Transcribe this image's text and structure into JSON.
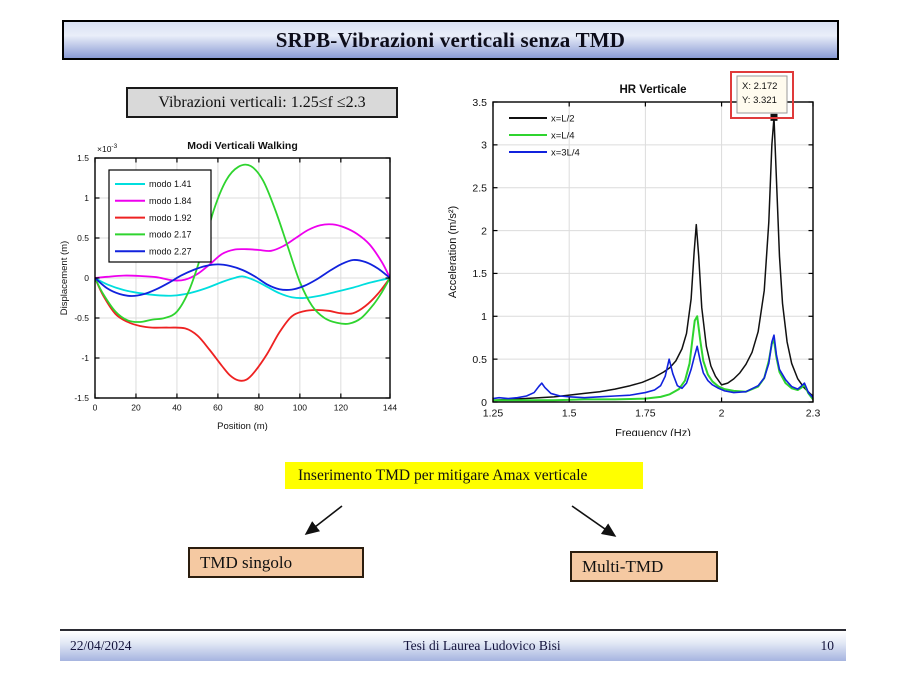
{
  "slide": {
    "title": "SRPB-Vibrazioni verticali senza TMD",
    "constraint_label": "Vibrazioni verticali: 1.25≤f ≤2.3",
    "action_label": "Inserimento TMD per mitigare Amax verticale",
    "options": {
      "left": "TMD singolo",
      "right": "Multi-TMD"
    },
    "footer": {
      "date": "22/04/2024",
      "center": "Tesi di Laurea Ludovico Bisi",
      "page": "10"
    }
  },
  "colors": {
    "header_fill_top": "#d9e0f3",
    "header_fill_bottom": "#8a9ad4",
    "yellow_highlight": "#ffff00",
    "option_box_fill": "#f5c9a2",
    "constraint_box_fill": "#d9d9d9",
    "grid": "#dcdcdc",
    "datatip_fill": "#fffbee",
    "datatip_highlight": "#e03a3a"
  },
  "chart_data": [
    {
      "id": "left",
      "type": "line",
      "title": "Modi Verticali Walking",
      "xlabel": "Position (m)",
      "ylabel": "Displacement (m)",
      "y_multiplier": {
        "base": "×10",
        "exp": "-3"
      },
      "xlim": [
        0,
        144
      ],
      "ylim": [
        -1.5,
        1.5
      ],
      "xticks": {
        "values": [
          0,
          20,
          40,
          60,
          80,
          100,
          120,
          144
        ],
        "labels": [
          "0",
          "20",
          "40",
          "60",
          "80",
          "100",
          "120",
          "144"
        ]
      },
      "yticks": {
        "values": [
          -1.5,
          -1,
          -0.5,
          0,
          0.5,
          1,
          1.5
        ],
        "labels": [
          "-1.5",
          "-1",
          "-0.5",
          "0",
          "0.5",
          "1",
          "1.5"
        ]
      },
      "grid": true,
      "legend": {
        "position": "top-left",
        "box": true
      },
      "series": [
        {
          "name": "modo 1.41",
          "color": "#00dede",
          "width": 1.8,
          "smooth": true,
          "x": [
            0,
            6,
            14,
            22,
            30,
            38,
            46,
            54,
            62,
            68,
            72,
            78,
            84,
            90,
            96,
            102,
            110,
            118,
            126,
            134,
            144
          ],
          "y": [
            0,
            -0.08,
            -0.15,
            -0.19,
            -0.215,
            -0.22,
            -0.19,
            -0.13,
            -0.05,
            0.0,
            0.02,
            -0.03,
            -0.11,
            -0.19,
            -0.24,
            -0.25,
            -0.22,
            -0.17,
            -0.12,
            -0.06,
            0
          ]
        },
        {
          "name": "modo 1.84",
          "color": "#ee00ee",
          "width": 1.8,
          "smooth": true,
          "x": [
            0,
            6,
            14,
            22,
            30,
            38,
            44,
            50,
            56,
            62,
            68,
            74,
            80,
            86,
            92,
            98,
            104,
            110,
            116,
            122,
            128,
            134,
            140,
            144
          ],
          "y": [
            0,
            0.015,
            0.03,
            0.025,
            0.01,
            -0.03,
            -0.02,
            0.05,
            0.17,
            0.3,
            0.355,
            0.36,
            0.35,
            0.34,
            0.4,
            0.5,
            0.6,
            0.66,
            0.67,
            0.63,
            0.55,
            0.42,
            0.2,
            0
          ]
        },
        {
          "name": "modo 1.92",
          "color": "#ee2222",
          "width": 1.8,
          "smooth": true,
          "x": [
            0,
            4,
            10,
            16,
            22,
            28,
            36,
            44,
            50,
            56,
            62,
            66,
            70,
            74,
            78,
            84,
            90,
            96,
            102,
            108,
            114,
            120,
            126,
            132,
            138,
            144
          ],
          "y": [
            0,
            -0.22,
            -0.45,
            -0.55,
            -0.6,
            -0.62,
            -0.62,
            -0.63,
            -0.72,
            -0.9,
            -1.1,
            -1.22,
            -1.28,
            -1.27,
            -1.17,
            -0.95,
            -0.68,
            -0.48,
            -0.415,
            -0.4,
            -0.41,
            -0.44,
            -0.44,
            -0.35,
            -0.2,
            0
          ]
        },
        {
          "name": "modo 2.17",
          "color": "#2fd42f",
          "width": 1.8,
          "smooth": true,
          "x": [
            0,
            4,
            10,
            16,
            22,
            28,
            34,
            40,
            46,
            52,
            58,
            64,
            70,
            76,
            82,
            88,
            94,
            100,
            106,
            112,
            118,
            124,
            130,
            136,
            140,
            144
          ],
          "y": [
            0,
            -0.2,
            -0.42,
            -0.53,
            -0.55,
            -0.52,
            -0.5,
            -0.42,
            -0.15,
            0.3,
            0.85,
            1.22,
            1.39,
            1.4,
            1.22,
            0.85,
            0.4,
            -0.05,
            -0.35,
            -0.5,
            -0.56,
            -0.57,
            -0.5,
            -0.33,
            -0.18,
            0
          ]
        },
        {
          "name": "modo 2.27",
          "color": "#1122dd",
          "width": 1.8,
          "smooth": true,
          "x": [
            0,
            6,
            12,
            18,
            24,
            30,
            36,
            42,
            48,
            54,
            60,
            66,
            72,
            78,
            84,
            90,
            96,
            102,
            108,
            114,
            120,
            126,
            132,
            138,
            144
          ],
          "y": [
            0,
            -0.13,
            -0.2,
            -0.225,
            -0.2,
            -0.14,
            -0.06,
            0.03,
            0.1,
            0.15,
            0.17,
            0.15,
            0.1,
            0.02,
            -0.08,
            -0.14,
            -0.145,
            -0.1,
            -0.02,
            0.08,
            0.17,
            0.225,
            0.2,
            0.12,
            0
          ]
        }
      ]
    },
    {
      "id": "right",
      "type": "line",
      "title": "HR Verticale",
      "xlabel": "Frequency (Hz)",
      "ylabel": "Acceleration (m/s²)",
      "xlim": [
        1.25,
        2.3
      ],
      "ylim": [
        0,
        3.5
      ],
      "xticks": {
        "values": [
          1.25,
          1.5,
          1.75,
          2,
          2.3
        ],
        "labels": [
          "1.25",
          "1.5",
          "1.75",
          "2",
          "2.3"
        ]
      },
      "yticks": {
        "values": [
          0,
          0.5,
          1,
          1.5,
          2,
          2.5,
          3,
          3.5
        ],
        "labels": [
          "0",
          "0.5",
          "1",
          "1.5",
          "2",
          "2.5",
          "3",
          "3.5"
        ]
      },
      "grid": true,
      "legend": {
        "position": "top-left",
        "box": false
      },
      "datatip": {
        "x": 2.172,
        "y": 3.321,
        "lines": [
          "X: 2.172",
          "Y: 3.321"
        ]
      },
      "series": [
        {
          "name": "x=L/2",
          "color": "#111111",
          "width": 1.5,
          "smooth": false,
          "x": [
            1.25,
            1.3,
            1.35,
            1.4,
            1.45,
            1.5,
            1.55,
            1.6,
            1.65,
            1.7,
            1.74,
            1.78,
            1.81,
            1.83,
            1.85,
            1.87,
            1.885,
            1.9,
            1.91,
            1.917,
            1.925,
            1.935,
            1.95,
            1.965,
            1.98,
            2.0,
            2.02,
            2.04,
            2.06,
            2.08,
            2.1,
            2.12,
            2.14,
            2.155,
            2.165,
            2.172,
            2.18,
            2.19,
            2.2,
            2.215,
            2.23,
            2.25,
            2.27,
            2.29,
            2.3
          ],
          "y": [
            0.02,
            0.03,
            0.04,
            0.05,
            0.06,
            0.08,
            0.1,
            0.12,
            0.15,
            0.19,
            0.23,
            0.29,
            0.35,
            0.4,
            0.48,
            0.62,
            0.8,
            1.2,
            1.75,
            2.07,
            1.7,
            1.1,
            0.65,
            0.42,
            0.3,
            0.2,
            0.22,
            0.27,
            0.34,
            0.44,
            0.58,
            0.82,
            1.3,
            2.1,
            3.0,
            3.32,
            2.6,
            1.7,
            1.15,
            0.7,
            0.45,
            0.27,
            0.17,
            0.1,
            0.07
          ]
        },
        {
          "name": "x=L/4",
          "color": "#2fd42f",
          "width": 2,
          "smooth": false,
          "x": [
            1.25,
            1.35,
            1.45,
            1.55,
            1.65,
            1.75,
            1.8,
            1.83,
            1.86,
            1.88,
            1.895,
            1.905,
            1.912,
            1.92,
            1.93,
            1.94,
            1.955,
            1.97,
            1.99,
            2.01,
            2.04,
            2.08,
            2.12,
            2.14,
            2.155,
            2.165,
            2.172,
            2.18,
            2.19,
            2.21,
            2.23,
            2.25,
            2.263,
            2.272,
            2.285,
            2.3
          ],
          "y": [
            0.02,
            0.02,
            0.02,
            0.03,
            0.03,
            0.04,
            0.06,
            0.09,
            0.15,
            0.25,
            0.45,
            0.75,
            0.95,
            1.0,
            0.72,
            0.48,
            0.32,
            0.24,
            0.18,
            0.15,
            0.13,
            0.12,
            0.18,
            0.28,
            0.48,
            0.68,
            0.72,
            0.52,
            0.35,
            0.22,
            0.16,
            0.14,
            0.17,
            0.2,
            0.1,
            0.03
          ]
        },
        {
          "name": "x=3L/4",
          "color": "#1122dd",
          "width": 1.6,
          "smooth": false,
          "x": [
            1.25,
            1.27,
            1.3,
            1.33,
            1.36,
            1.385,
            1.4,
            1.41,
            1.42,
            1.44,
            1.47,
            1.5,
            1.55,
            1.6,
            1.65,
            1.7,
            1.75,
            1.78,
            1.8,
            1.815,
            1.828,
            1.84,
            1.855,
            1.87,
            1.885,
            1.9,
            1.91,
            1.92,
            1.93,
            1.94,
            1.955,
            1.97,
            1.99,
            2.01,
            2.04,
            2.08,
            2.12,
            2.14,
            2.155,
            2.165,
            2.172,
            2.18,
            2.19,
            2.21,
            2.23,
            2.25,
            2.263,
            2.272,
            2.285,
            2.3
          ],
          "y": [
            0.04,
            0.05,
            0.04,
            0.05,
            0.07,
            0.11,
            0.18,
            0.22,
            0.17,
            0.1,
            0.07,
            0.06,
            0.05,
            0.06,
            0.07,
            0.08,
            0.11,
            0.14,
            0.19,
            0.3,
            0.5,
            0.33,
            0.19,
            0.16,
            0.22,
            0.38,
            0.52,
            0.65,
            0.48,
            0.34,
            0.25,
            0.2,
            0.16,
            0.13,
            0.11,
            0.12,
            0.19,
            0.28,
            0.45,
            0.7,
            0.78,
            0.55,
            0.38,
            0.26,
            0.18,
            0.15,
            0.19,
            0.22,
            0.11,
            0.05
          ]
        }
      ]
    }
  ]
}
